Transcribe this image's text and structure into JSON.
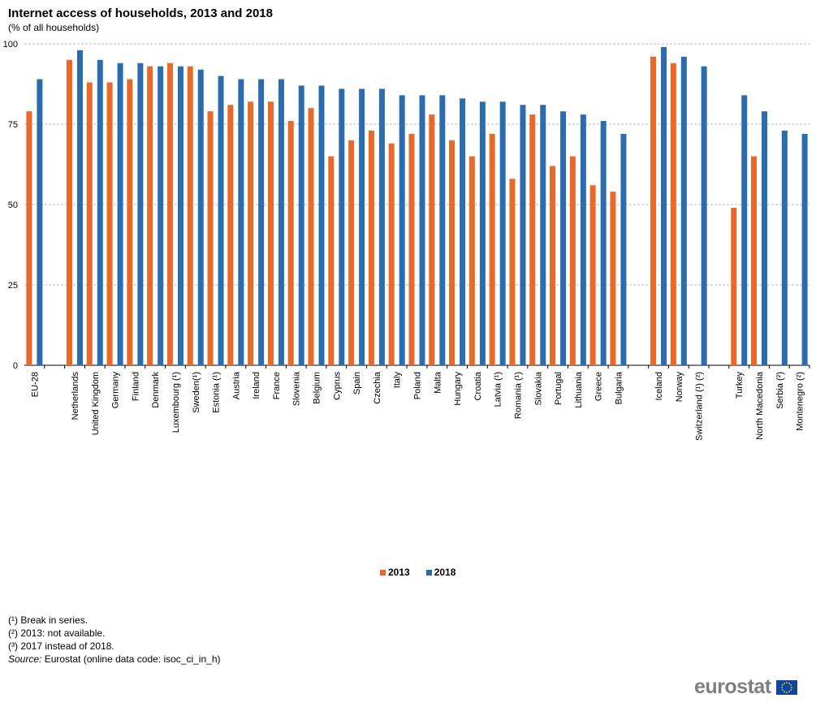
{
  "header": {
    "title": "Internet access of households, 2013 and 2018",
    "subtitle": "(% of all households)"
  },
  "colors": {
    "s2013": "#e8692a",
    "s2018": "#2b6cb0",
    "grid": "#b9b9b9",
    "flag": "#0e47a1",
    "star": "#ffd700"
  },
  "chart_data": {
    "type": "bar",
    "title": "Internet access of households, 2013 and 2018",
    "subtitle": "(% of all households)",
    "ylim": [
      0,
      100
    ],
    "yticks": [
      0,
      25,
      50,
      75,
      100
    ],
    "grid": true,
    "legend_position": "bottom-center",
    "categories": [
      "EU-28",
      "",
      "Netherlands",
      "United Kingdom",
      "Germany",
      "Finland",
      "Denmark",
      "Luxembourg (¹)",
      "Sweden(¹)",
      "Estonia (¹)",
      "Austria",
      "Ireland",
      "France",
      "Slovenia",
      "Belgium",
      "Cyprus",
      "Spain",
      "Czechia",
      "Italy",
      "Poland",
      "Malta",
      "Hungary",
      "Croatia",
      "Latvia (¹)",
      "Romania (¹)",
      "Slovakia",
      "Portugal",
      "Lithuania",
      "Greece",
      "Bulgaria",
      "",
      "Iceland",
      "Norway",
      "Switzerland (¹) (²)",
      "",
      "Turkey",
      "North Macedonia",
      "Serbia (²)",
      "Montenegro (²)"
    ],
    "series": [
      {
        "name": "2013",
        "values": [
          79,
          null,
          95,
          88,
          88,
          89,
          93,
          94,
          93,
          79,
          81,
          82,
          82,
          76,
          80,
          65,
          70,
          73,
          69,
          72,
          78,
          70,
          65,
          72,
          58,
          78,
          62,
          65,
          56,
          54,
          null,
          96,
          94,
          null,
          null,
          49,
          65,
          null,
          null
        ]
      },
      {
        "name": "2018",
        "values": [
          89,
          null,
          98,
          95,
          94,
          94,
          93,
          93,
          92,
          90,
          89,
          89,
          89,
          87,
          87,
          86,
          86,
          86,
          84,
          84,
          84,
          83,
          82,
          82,
          81,
          81,
          79,
          78,
          76,
          72,
          null,
          99,
          96,
          93,
          null,
          84,
          79,
          73,
          72
        ]
      }
    ]
  },
  "legend": {
    "label_2013": "2013",
    "label_2018": "2018"
  },
  "notes": {
    "note1": "(¹) Break in series.",
    "note2": "(²) 2013: not available.",
    "note3": "(³) 2017 instead of 2018.",
    "source_label": "Source:",
    "source_text": " Eurostat (online data code: isoc_ci_in_h)"
  },
  "logo": {
    "text": "eurostat",
    "icon": "eu-flag-icon"
  }
}
